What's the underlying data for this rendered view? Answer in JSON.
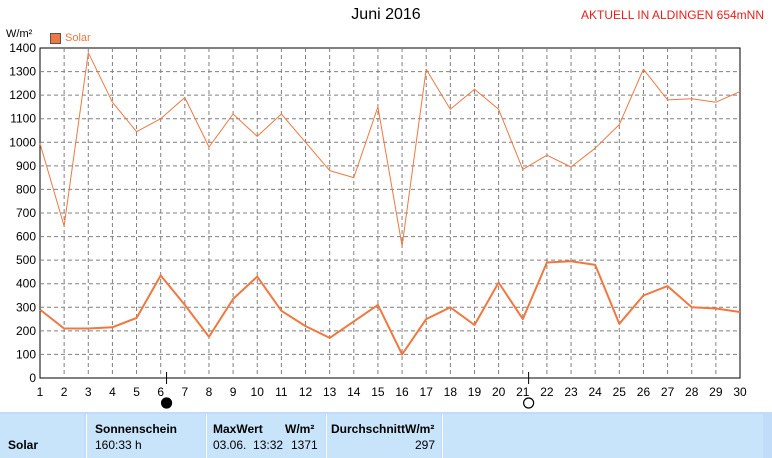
{
  "title": "Juni 2016",
  "aktuell": "AKTUELL IN ALDINGEN 654mNN",
  "chart_data": {
    "type": "line",
    "title": "Juni 2016",
    "ylabel": "W/m²",
    "ylim": [
      0,
      1400
    ],
    "yticks": [
      0,
      100,
      200,
      300,
      400,
      500,
      600,
      700,
      800,
      900,
      1000,
      1100,
      1200,
      1300,
      1400
    ],
    "x": [
      1,
      2,
      3,
      4,
      5,
      6,
      7,
      8,
      9,
      10,
      11,
      12,
      13,
      14,
      15,
      16,
      17,
      18,
      19,
      20,
      21,
      22,
      23,
      24,
      25,
      26,
      27,
      28,
      29,
      30
    ],
    "xlim": [
      1,
      30
    ],
    "grid": true,
    "legend": "top-left",
    "series": [
      {
        "name": "Solar",
        "values": [
          290,
          210,
          210,
          215,
          255,
          435,
          310,
          175,
          335,
          430,
          285,
          220,
          170,
          240,
          310,
          100,
          250,
          300,
          225,
          405,
          250,
          490,
          495,
          480,
          230,
          350,
          390,
          300,
          295,
          280
        ]
      },
      {
        "values": [
          995,
          645,
          1380,
          1170,
          1045,
          1100,
          1190,
          980,
          1120,
          1025,
          1120,
          1000,
          880,
          850,
          1150,
          560,
          1310,
          1140,
          1225,
          1140,
          885,
          945,
          895,
          975,
          1075,
          1310,
          1180,
          1185,
          1170,
          1215
        ]
      }
    ],
    "moon_markers": [
      {
        "day": 5,
        "phase": "new-moon"
      },
      {
        "day": 20,
        "phase": "full-moon"
      }
    ]
  },
  "footer": {
    "row_label": "Solar",
    "sonnenschein_label": "Sonnenschein",
    "sonnenschein_value": "160:33 h",
    "maxwert_label": "MaxWert",
    "maxwert_unit": "W/m²",
    "maxwert_date": "03.06.  13:32",
    "maxwert_value": "1371",
    "durchschnitt_label": "Durchschnitt",
    "durchschnitt_unit": "W/m²",
    "durchschnitt_value": "297"
  },
  "colors": {
    "series_daily": "#f07840",
    "series_max": "#f07840",
    "grid": "#808080",
    "footer_bg": "#c0dcf8"
  }
}
